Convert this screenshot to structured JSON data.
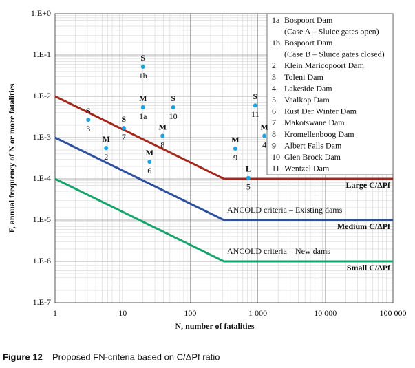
{
  "chart_data": {
    "type": "line",
    "xlabel": "N, number of fatalities",
    "ylabel": "F, annual frequency of N or more fatalities",
    "log_x": true,
    "log_y": true,
    "grid": true,
    "minor_grid": true,
    "xlim": [
      1,
      100000
    ],
    "ylim": [
      1e-07,
      1
    ],
    "xticks": [
      1,
      10,
      100,
      {
        "value": 1000,
        "label": "1 000"
      },
      {
        "value": 10000,
        "label": "10 000"
      },
      {
        "value": 100000,
        "label": "100 000"
      }
    ],
    "yticks": [
      {
        "value": 1e-07,
        "label": "1.E-7"
      },
      {
        "value": 1e-06,
        "label": "1.E-6"
      },
      {
        "value": 1e-05,
        "label": "1.E-5"
      },
      {
        "value": 0.0001,
        "label": "1.E-4"
      },
      {
        "value": 0.001,
        "label": "1.E-3"
      },
      {
        "value": 0.01,
        "label": "1.E-2"
      },
      {
        "value": 0.1,
        "label": "1.E-1"
      },
      {
        "value": 1,
        "label": "1.E+0"
      }
    ],
    "series": [
      {
        "name": "Large C/ΔPf",
        "color": "#a3281c",
        "x": [
          1,
          316,
          100000
        ],
        "values": [
          0.01,
          0.0001,
          0.0001
        ]
      },
      {
        "name": "Medium C/ΔPf",
        "color": "#2c4f9e",
        "x": [
          1,
          316,
          100000
        ],
        "values": [
          0.001,
          1e-05,
          1e-05
        ]
      },
      {
        "name": "Small C/ΔPf",
        "color": "#17a46c",
        "x": [
          1,
          316,
          100000
        ],
        "values": [
          0.0001,
          1e-06,
          1e-06
        ]
      }
    ],
    "annotations": [
      "ANCOLD criteria – Existing dams",
      "ANCOLD criteria – New dams"
    ],
    "point_color": "#1ba3e3",
    "rating_color": "#e0302c",
    "points": [
      {
        "label": "1a",
        "rating": "M",
        "x": 20,
        "y": 0.0054
      },
      {
        "label": "1b",
        "rating": "S",
        "x": 20,
        "y": 0.052
      },
      {
        "label": "2",
        "rating": "M",
        "x": 5.7,
        "y": 0.00056
      },
      {
        "label": "3",
        "rating": "S",
        "x": 3.1,
        "y": 0.0027
      },
      {
        "label": "4",
        "rating": "M",
        "x": 1250,
        "y": 0.0011
      },
      {
        "label": "5",
        "rating": "L",
        "x": 725,
        "y": 0.000105
      },
      {
        "label": "6",
        "rating": "M",
        "x": 25,
        "y": 0.00026
      },
      {
        "label": "7",
        "rating": "S",
        "x": 10.4,
        "y": 0.0017
      },
      {
        "label": "8",
        "rating": "M",
        "x": 39,
        "y": 0.0011
      },
      {
        "label": "9",
        "rating": "M",
        "x": 465,
        "y": 0.00054
      },
      {
        "label": "10",
        "rating": "S",
        "x": 56,
        "y": 0.0054
      },
      {
        "label": "11",
        "rating": "S",
        "x": 915,
        "y": 0.006
      }
    ],
    "legend": [
      {
        "key": "1a",
        "lines": [
          "Bospoort Dam",
          "(Case A – Sluice gates open)"
        ]
      },
      {
        "key": "1b",
        "lines": [
          "Bospoort Dam",
          "(Case B – Sluice gates closed)"
        ]
      },
      {
        "key": "2",
        "lines": [
          "Klein Maricopoort Dam"
        ]
      },
      {
        "key": "3",
        "lines": [
          "Toleni Dam"
        ]
      },
      {
        "key": "4",
        "lines": [
          "Lakeside Dam"
        ]
      },
      {
        "key": "5",
        "lines": [
          "Vaalkop Dam"
        ]
      },
      {
        "key": "6",
        "lines": [
          "Rust Der Winter Dam"
        ]
      },
      {
        "key": "7",
        "lines": [
          "Makotswane Dam"
        ]
      },
      {
        "key": "8",
        "lines": [
          "Kromellenboog Dam"
        ]
      },
      {
        "key": "9",
        "lines": [
          "Albert Falls Dam"
        ]
      },
      {
        "key": "10",
        "lines": [
          "Glen Brock Dam"
        ]
      },
      {
        "key": "11",
        "lines": [
          "Wentzel Dam"
        ]
      }
    ],
    "figure_label": "Figure 12",
    "caption": "Proposed FN-criteria based on C/ΔPf ratio"
  }
}
